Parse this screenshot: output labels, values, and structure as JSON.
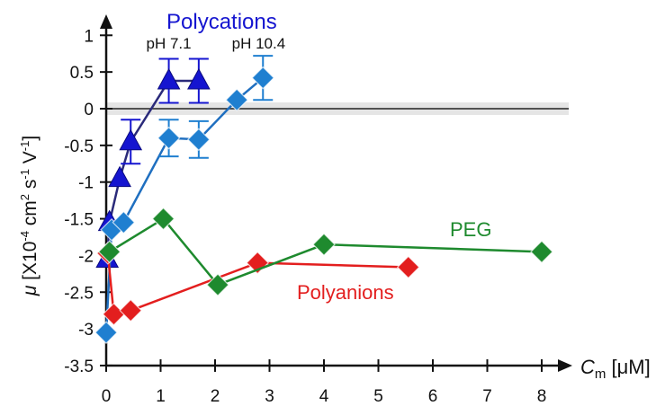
{
  "chart_data": {
    "type": "scatter",
    "xlabel_var": "C",
    "xlabel_sub": "m",
    "xlabel_unit": " [μM]",
    "ylabel_var": "μ",
    "ylabel_p1": " [X10",
    "ylabel_e1": "-4",
    "ylabel_p2": " cm",
    "ylabel_e2": "2",
    "ylabel_p3": " s",
    "ylabel_e3": "-1",
    "ylabel_p4": " V",
    "ylabel_e4": "-1",
    "ylabel_p5": "]",
    "xlim": [
      0,
      8.5
    ],
    "ylim": [
      -3.5,
      1.1
    ],
    "xticks": [
      0,
      1,
      2,
      3,
      4,
      5,
      6,
      7,
      8
    ],
    "yticks": [
      -3.5,
      -3,
      -2.5,
      -2,
      -1.5,
      -1,
      -0.5,
      0,
      0.5,
      1
    ],
    "series": [
      {
        "name": "Polycations",
        "color": "#1515d0",
        "line_color": "#2a2a7a",
        "marker": "triangle",
        "points": [
          {
            "x": 0.02,
            "y": -2.05
          },
          {
            "x": 0.06,
            "y": -1.55
          },
          {
            "x": 0.25,
            "y": -0.95
          },
          {
            "x": 0.45,
            "y": -0.45,
            "err": 0.3
          },
          {
            "x": 1.15,
            "y": 0.38,
            "err": 0.3
          },
          {
            "x": 1.7,
            "y": 0.38,
            "err": 0.3
          }
        ]
      },
      {
        "name": "",
        "color": "#1f7fd0",
        "line_color": "#1f6fc0",
        "marker": "diamond",
        "points": [
          {
            "x": 0.0,
            "y": -3.05
          },
          {
            "x": 0.1,
            "y": -1.65
          },
          {
            "x": 0.32,
            "y": -1.55
          },
          {
            "x": 1.15,
            "y": -0.4,
            "err": 0.25
          },
          {
            "x": 1.7,
            "y": -0.42,
            "err": 0.25
          },
          {
            "x": 2.4,
            "y": 0.12
          },
          {
            "x": 2.88,
            "y": 0.42,
            "err": 0.3
          }
        ]
      },
      {
        "name": "Polyanions",
        "color": "#e31e1e",
        "line_color": "#e31e1e",
        "marker": "diamond",
        "points": [
          {
            "x": 0.03,
            "y": -1.97
          },
          {
            "x": 0.14,
            "y": -2.8
          },
          {
            "x": 0.45,
            "y": -2.75
          },
          {
            "x": 2.78,
            "y": -2.1
          },
          {
            "x": 5.55,
            "y": -2.16
          }
        ]
      },
      {
        "name": "PEG",
        "color": "#1e8a2e",
        "line_color": "#1e8a2e",
        "marker": "diamond",
        "points": [
          {
            "x": 0.06,
            "y": -1.95
          },
          {
            "x": 1.05,
            "y": -1.5
          },
          {
            "x": 2.05,
            "y": -2.4
          },
          {
            "x": 4.0,
            "y": -1.85
          },
          {
            "x": 8.0,
            "y": -1.95
          }
        ]
      }
    ],
    "annotations": [
      {
        "text": "pH 7.1",
        "x": 1.15,
        "y": 0.82,
        "color": "#111111"
      },
      {
        "text": "pH 10.4",
        "x": 2.8,
        "y": 0.82,
        "color": "#111111"
      }
    ],
    "grid": false,
    "zero_line": true
  }
}
